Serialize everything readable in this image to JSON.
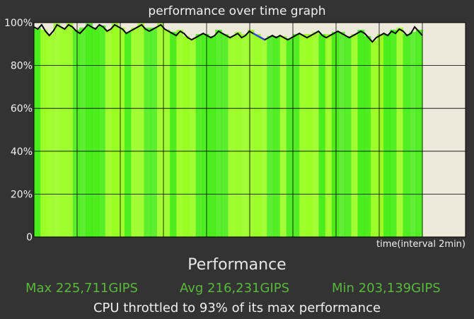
{
  "chart_data": {
    "type": "area",
    "title": "performance over time graph",
    "xlabel": "time(interval 2min)",
    "ylabel": "",
    "y_ticks": [
      "100%",
      "80%",
      "60%",
      "40%",
      "20%",
      "0"
    ],
    "ylim": [
      0,
      100
    ],
    "x_range": [
      0,
      100
    ],
    "colors": {
      "background": "#eeeadb",
      "fill_a": "#33ee00",
      "fill_b": "#99ff22",
      "line": "#000000",
      "grid": "#000000",
      "highlight": "#3344dd"
    },
    "series": [
      {
        "values": [
          98,
          97,
          99,
          96,
          94,
          96,
          99,
          98,
          97,
          99,
          98,
          96,
          95,
          97,
          99,
          98,
          97,
          99,
          98,
          96,
          97,
          99,
          98,
          97,
          95,
          96,
          97,
          98,
          99,
          97,
          96,
          97,
          98,
          99,
          97,
          96,
          95,
          94,
          96,
          95,
          93,
          92,
          93,
          94,
          95,
          94,
          93,
          94,
          96,
          95,
          94,
          93,
          94,
          95,
          93,
          94,
          96,
          95,
          94,
          93,
          92,
          93,
          94,
          93,
          94,
          93,
          92,
          93,
          94,
          95,
          94,
          93,
          94,
          95,
          96,
          94,
          93,
          94,
          95,
          96,
          95,
          94,
          93,
          94,
          95,
          96,
          95,
          93,
          91,
          93,
          94,
          95,
          94,
          96,
          95,
          97,
          96,
          94,
          95,
          98,
          96,
          94
        ]
      }
    ],
    "highlight_range": [
      56.5,
      60.5
    ],
    "data_end_fraction": 0.9
  },
  "stats": {
    "heading": "Performance",
    "max": "Max 225,711GIPS",
    "avg": "Avg 216,231GIPS",
    "min": "Min 203,139GIPS",
    "summary": "CPU throttled to 93% of its max performance"
  }
}
